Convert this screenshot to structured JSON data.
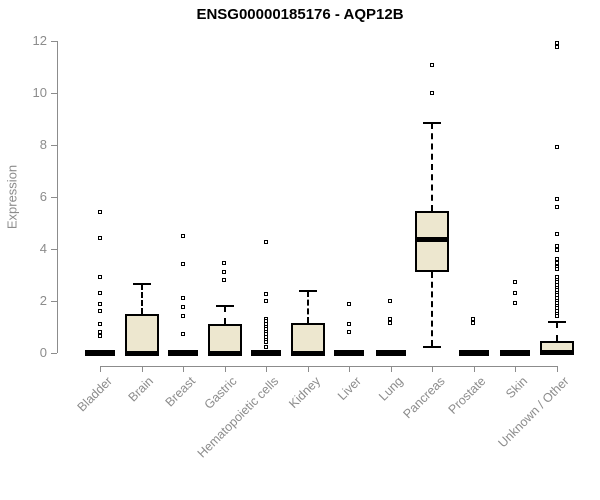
{
  "chart_data": {
    "type": "boxplot",
    "title": "ENSG00000185176 - AQP12B",
    "ylabel": "Expression",
    "xlabel": "",
    "ylim": [
      0,
      12
    ],
    "yticks": [
      0,
      2,
      4,
      6,
      8,
      10,
      12
    ],
    "grid": false,
    "legend": "none",
    "categories": [
      "Bladder",
      "Brain",
      "Breast",
      "Gastric",
      "Hematopoietic cells",
      "Kidney",
      "Liver",
      "Lung",
      "Pancreas",
      "Prostate",
      "Skin",
      "Unknown / Other"
    ],
    "series": [
      {
        "category": "Bladder",
        "q1": 0,
        "median": 0,
        "q3": 0,
        "whisker_low": 0,
        "whisker_high": 0,
        "outliers": [
          5.4,
          4.4,
          2.9,
          2.3,
          1.85,
          1.6,
          1.1,
          0.8,
          0.65
        ]
      },
      {
        "category": "Brain",
        "q1": 0,
        "median": 0,
        "q3": 1.5,
        "whisker_low": 0,
        "whisker_high": 2.65,
        "outliers": []
      },
      {
        "category": "Breast",
        "q1": 0,
        "median": 0,
        "q3": 0,
        "whisker_low": 0,
        "whisker_high": 0,
        "outliers": [
          4.5,
          3.4,
          2.1,
          1.75,
          1.4,
          0.7
        ]
      },
      {
        "category": "Gastric",
        "q1": 0,
        "median": 0,
        "q3": 1.1,
        "whisker_low": 0,
        "whisker_high": 1.8,
        "outliers": [
          3.45,
          3.1,
          2.8
        ]
      },
      {
        "category": "Hematopoietic cells",
        "q1": 0,
        "median": 0,
        "q3": 0,
        "whisker_low": 0,
        "whisker_high": 0,
        "outliers": [
          4.25,
          2.25,
          2.0,
          1.3,
          1.2,
          1.1,
          1.0,
          0.9,
          0.8,
          0.7,
          0.6,
          0.5,
          0.4,
          0.2
        ]
      },
      {
        "category": "Kidney",
        "q1": 0,
        "median": 0,
        "q3": 1.15,
        "whisker_low": 0,
        "whisker_high": 2.4,
        "outliers": []
      },
      {
        "category": "Liver",
        "q1": 0,
        "median": 0,
        "q3": 0,
        "whisker_low": 0,
        "whisker_high": 0,
        "outliers": [
          1.85,
          1.1,
          0.8
        ]
      },
      {
        "category": "Lung",
        "q1": 0,
        "median": 0,
        "q3": 0,
        "whisker_low": 0,
        "whisker_high": 0,
        "outliers": [
          2.0,
          1.3,
          1.15
        ]
      },
      {
        "category": "Pancreas",
        "q1": 3.1,
        "median": 4.4,
        "q3": 5.45,
        "whisker_low": 0.25,
        "whisker_high": 8.85,
        "outliers": [
          11.05,
          10.0
        ]
      },
      {
        "category": "Prostate",
        "q1": 0,
        "median": 0,
        "q3": 0,
        "whisker_low": 0,
        "whisker_high": 0,
        "outliers": [
          1.3,
          1.15
        ]
      },
      {
        "category": "Skin",
        "q1": 0,
        "median": 0,
        "q3": 0,
        "whisker_low": 0,
        "whisker_high": 0,
        "outliers": [
          2.7,
          2.3,
          1.9
        ]
      },
      {
        "category": "Unknown / Other",
        "q1": 0,
        "median": 0.05,
        "q3": 0.45,
        "whisker_low": 0,
        "whisker_high": 1.2,
        "outliers": [
          11.9,
          11.75,
          7.9,
          5.9,
          5.6,
          4.55,
          4.1,
          3.95,
          3.6,
          3.45,
          3.3,
          3.2,
          2.9,
          2.8,
          2.7,
          2.6,
          2.5,
          2.4,
          2.3,
          2.2,
          2.1,
          2.0,
          1.9,
          1.8,
          1.7,
          1.6,
          1.5,
          1.4
        ]
      }
    ],
    "colors": {
      "box_fill": "#EDE7CF",
      "box_border": "#000000",
      "axis": "#8C8C8C",
      "tick_label": "#8C8C8C",
      "title": "#000000"
    }
  }
}
